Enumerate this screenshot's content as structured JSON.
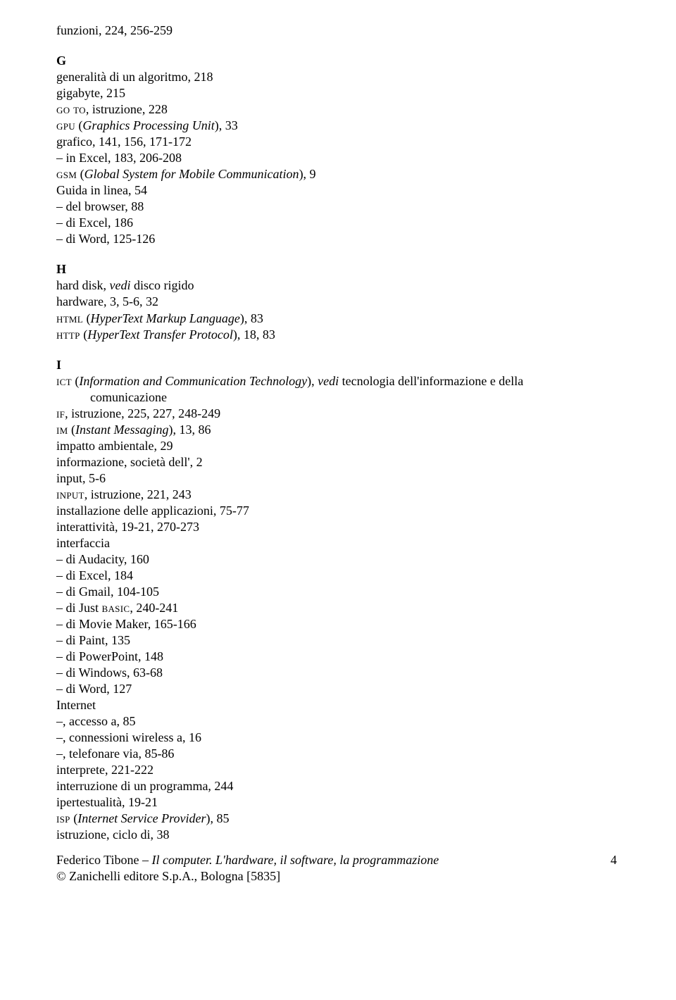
{
  "top_line": "funzioni, 224, 256-259",
  "sections": {
    "G": {
      "letter": "G",
      "lines": [
        {
          "html": "generalità di un algoritmo, 218"
        },
        {
          "html": "gigabyte, 215"
        },
        {
          "html": "<span class='sc'>go to</span>, istruzione, 228"
        },
        {
          "html": "<span class='sc'>gpu</span> (<span class='it'>Graphics Processing Unit</span>), 33"
        },
        {
          "html": "grafico, 141, 156, 171-172"
        },
        {
          "html": "– in Excel, 183, 206-208"
        },
        {
          "html": "<span class='sc'>gsm</span> (<span class='it'>Global System for Mobile Communication</span>), 9"
        },
        {
          "html": "Guida in linea, 54"
        },
        {
          "html": "– del browser, 88"
        },
        {
          "html": "– di Excel, 186"
        },
        {
          "html": "– di Word, 125-126"
        }
      ]
    },
    "H": {
      "letter": "H",
      "lines": [
        {
          "html": "hard disk, <span class='it'>vedi</span> disco rigido"
        },
        {
          "html": "hardware, 3, 5-6, 32"
        },
        {
          "html": "<span class='sc'>html</span> (<span class='it'>HyperText Markup Language</span>), 83"
        },
        {
          "html": "<span class='sc'>http</span> (<span class='it'>HyperText Transfer Protocol</span>), 18, 83"
        }
      ]
    },
    "I": {
      "letter": "I",
      "lines": [
        {
          "html": "<span class='sc'>ict</span> (<span class='it'>Information and Communication Technology</span>), <span class='it'>vedi</span> tecnologia dell'informazione e della"
        },
        {
          "html": "comunicazione",
          "indent": true
        },
        {
          "html": "<span class='sc'>if</span>, istruzione, 225, 227, 248-249"
        },
        {
          "html": "<span class='sc'>im</span> (<span class='it'>Instant Messaging</span>), 13, 86"
        },
        {
          "html": "impatto ambientale, 29"
        },
        {
          "html": "informazione, società dell', 2"
        },
        {
          "html": "input, 5-6"
        },
        {
          "html": "<span class='sc'>input</span>, istruzione, 221, 243"
        },
        {
          "html": "installazione delle applicazioni, 75-77"
        },
        {
          "html": "interattività, 19-21, 270-273"
        },
        {
          "html": "interfaccia"
        },
        {
          "html": "– di Audacity, 160"
        },
        {
          "html": "– di Excel, 184"
        },
        {
          "html": "– di Gmail, 104-105"
        },
        {
          "html": "– di Just <span class='sc'>basic</span>, 240-241"
        },
        {
          "html": "– di Movie Maker, 165-166"
        },
        {
          "html": "– di Paint, 135"
        },
        {
          "html": "– di PowerPoint, 148"
        },
        {
          "html": "– di Windows, 63-68"
        },
        {
          "html": "– di Word, 127"
        },
        {
          "html": "Internet"
        },
        {
          "html": "–, accesso a, 85"
        },
        {
          "html": "–, connessioni wireless a, 16"
        },
        {
          "html": "–, telefonare via, 85-86"
        },
        {
          "html": "interprete, 221-222"
        },
        {
          "html": "interruzione di un programma, 244"
        },
        {
          "html": "ipertestualità, 19-21"
        },
        {
          "html": "<span class='sc'>isp</span> (<span class='it'>Internet Service Provider</span>), 85"
        },
        {
          "html": "istruzione, ciclo di, 38"
        }
      ]
    }
  },
  "footer": {
    "line1_left_html": "Federico Tibone – <span class='it'>Il computer. L'hardware, il software, la programmazione</span>",
    "page_number": "4",
    "line2": "© Zanichelli editore S.p.A., Bologna [5835]"
  }
}
